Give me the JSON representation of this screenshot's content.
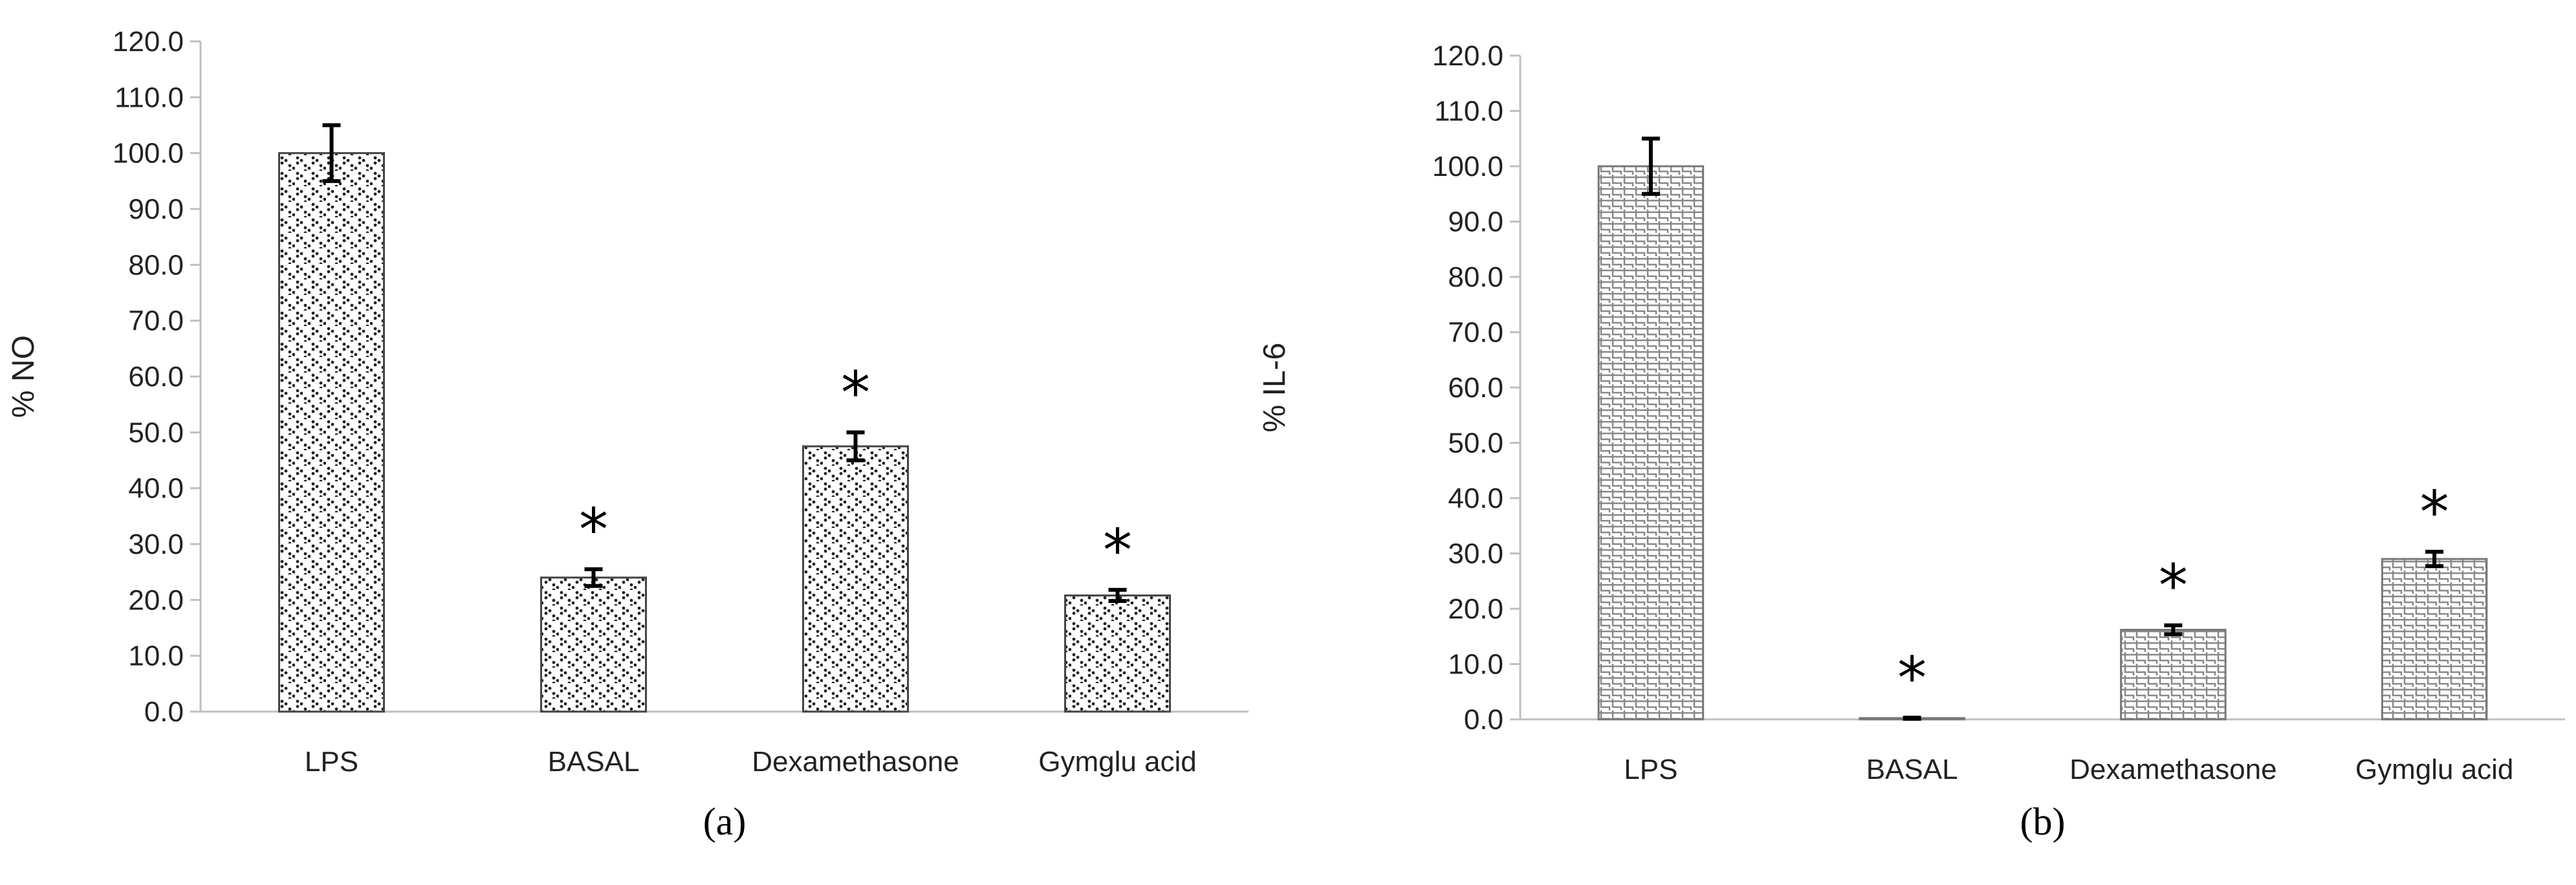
{
  "chart_data": [
    {
      "type": "bar",
      "panel_label": "(a)",
      "ylabel": "% NO",
      "xlabel": "",
      "ylim": [
        0,
        120
      ],
      "yticks": [
        0,
        10,
        20,
        30,
        40,
        50,
        60,
        70,
        80,
        90,
        100,
        110,
        120
      ],
      "ytick_labels": [
        "0.0",
        "10.0",
        "20.0",
        "30.0",
        "40.0",
        "50.0",
        "60.0",
        "70.0",
        "80.0",
        "90.0",
        "100.0",
        "110.0",
        "120.0"
      ],
      "categories": [
        "LPS",
        "BASAL",
        "Dexamethasone",
        "Gymglu acid"
      ],
      "values": [
        100.0,
        24.0,
        47.5,
        20.8
      ],
      "errors": [
        5.0,
        1.5,
        2.5,
        1.0
      ],
      "annotations": [
        "",
        "*",
        "*",
        "*"
      ],
      "grid": false,
      "pattern": "dots"
    },
    {
      "type": "bar",
      "panel_label": "(b)",
      "ylabel": "% IL-6",
      "xlabel": "",
      "ylim": [
        0,
        120
      ],
      "yticks": [
        0,
        10,
        20,
        30,
        40,
        50,
        60,
        70,
        80,
        90,
        100,
        110,
        120
      ],
      "ytick_labels": [
        "0.0",
        "10.0",
        "20.0",
        "30.0",
        "40.0",
        "50.0",
        "60.0",
        "70.0",
        "80.0",
        "90.0",
        "100.0",
        "110.0",
        "120.0"
      ],
      "categories": [
        "LPS",
        "BASAL",
        "Dexamethasone",
        "Gymglu acid"
      ],
      "values": [
        100.0,
        0.2,
        16.2,
        29.0
      ],
      "errors": [
        5.0,
        0.1,
        0.8,
        1.3
      ],
      "annotations": [
        "",
        "*",
        "*",
        "*"
      ],
      "grid": false,
      "pattern": "weave"
    }
  ]
}
